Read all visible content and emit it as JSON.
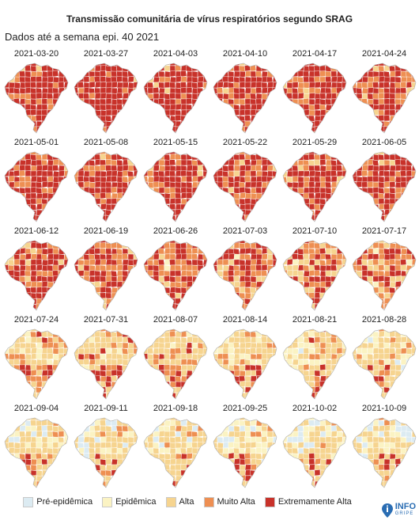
{
  "title": "Transmissão comunitária de vírus respiratórios segundo SRAG",
  "subtitle": "Dados até a semana epi. 40 2021",
  "colors": {
    "pre": "#dcebf2",
    "epi": "#fbf3c3",
    "alta": "#f6d48f",
    "muito": "#ee8f52",
    "extrema": "#c8322a"
  },
  "legend": [
    {
      "key": "pre",
      "label": "Pré-epidêmica"
    },
    {
      "key": "epi",
      "label": "Epidêmica"
    },
    {
      "key": "alta",
      "label": "Alta"
    },
    {
      "key": "muito",
      "label": "Muito Alta"
    },
    {
      "key": "extrema",
      "label": "Extremamente Alta"
    }
  ],
  "maps": [
    {
      "date": "2021-03-20",
      "level": [
        0,
        0,
        0.05,
        0.25,
        0.7
      ]
    },
    {
      "date": "2021-03-27",
      "level": [
        0,
        0,
        0.03,
        0.22,
        0.75
      ]
    },
    {
      "date": "2021-04-03",
      "level": [
        0,
        0,
        0.04,
        0.2,
        0.76
      ]
    },
    {
      "date": "2021-04-10",
      "level": [
        0,
        0,
        0.06,
        0.28,
        0.66
      ]
    },
    {
      "date": "2021-04-17",
      "level": [
        0,
        0,
        0.07,
        0.33,
        0.6
      ]
    },
    {
      "date": "2021-04-24",
      "level": [
        0,
        0,
        0.08,
        0.35,
        0.57
      ]
    },
    {
      "date": "2021-05-01",
      "level": [
        0,
        0,
        0.08,
        0.34,
        0.58
      ]
    },
    {
      "date": "2021-05-08",
      "level": [
        0,
        0,
        0.09,
        0.33,
        0.58
      ]
    },
    {
      "date": "2021-05-15",
      "level": [
        0,
        0,
        0.08,
        0.3,
        0.62
      ]
    },
    {
      "date": "2021-05-22",
      "level": [
        0,
        0,
        0.08,
        0.3,
        0.62
      ]
    },
    {
      "date": "2021-05-29",
      "level": [
        0,
        0,
        0.07,
        0.28,
        0.65
      ]
    },
    {
      "date": "2021-06-05",
      "level": [
        0,
        0,
        0.08,
        0.3,
        0.62
      ]
    },
    {
      "date": "2021-06-12",
      "level": [
        0,
        0,
        0.1,
        0.34,
        0.56
      ]
    },
    {
      "date": "2021-06-19",
      "level": [
        0,
        0.02,
        0.14,
        0.36,
        0.48
      ]
    },
    {
      "date": "2021-06-26",
      "level": [
        0,
        0.03,
        0.18,
        0.37,
        0.42
      ]
    },
    {
      "date": "2021-07-03",
      "level": [
        0,
        0.04,
        0.24,
        0.36,
        0.36
      ]
    },
    {
      "date": "2021-07-10",
      "level": [
        0,
        0.05,
        0.3,
        0.35,
        0.3
      ]
    },
    {
      "date": "2021-07-17",
      "level": [
        0,
        0.06,
        0.36,
        0.34,
        0.24
      ]
    },
    {
      "date": "2021-07-24",
      "level": [
        0,
        0.08,
        0.52,
        0.22,
        0.18
      ]
    },
    {
      "date": "2021-07-31",
      "level": [
        0,
        0.1,
        0.52,
        0.2,
        0.18
      ]
    },
    {
      "date": "2021-08-07",
      "level": [
        0,
        0.12,
        0.52,
        0.2,
        0.16
      ]
    },
    {
      "date": "2021-08-14",
      "level": [
        0,
        0.14,
        0.54,
        0.18,
        0.14
      ]
    },
    {
      "date": "2021-08-21",
      "level": [
        0.02,
        0.16,
        0.56,
        0.16,
        0.1
      ]
    },
    {
      "date": "2021-08-28",
      "level": [
        0.06,
        0.16,
        0.56,
        0.14,
        0.08
      ]
    },
    {
      "date": "2021-09-04",
      "level": [
        0.12,
        0.18,
        0.52,
        0.12,
        0.06
      ]
    },
    {
      "date": "2021-09-11",
      "level": [
        0.12,
        0.2,
        0.5,
        0.12,
        0.06
      ]
    },
    {
      "date": "2021-09-18",
      "level": [
        0.1,
        0.2,
        0.52,
        0.12,
        0.06
      ]
    },
    {
      "date": "2021-09-25",
      "level": [
        0.1,
        0.22,
        0.5,
        0.12,
        0.06
      ]
    },
    {
      "date": "2021-10-02",
      "level": [
        0.12,
        0.22,
        0.5,
        0.11,
        0.05
      ]
    },
    {
      "date": "2021-10-09",
      "level": [
        0.14,
        0.22,
        0.48,
        0.11,
        0.05
      ]
    }
  ],
  "logo": {
    "top": "INFO",
    "bottom": "GRIPE",
    "icon": "infogripe-logo-icon"
  }
}
